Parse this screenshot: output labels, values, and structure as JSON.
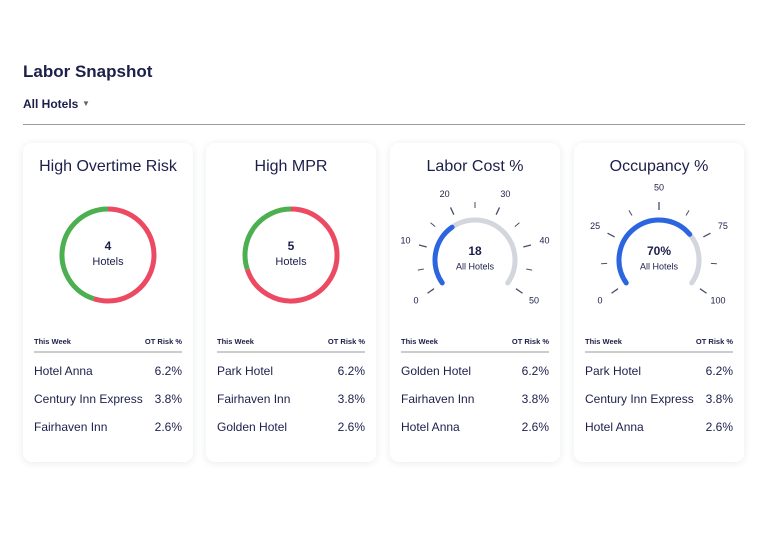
{
  "header": {
    "title": "Labor Snapshot",
    "filter": "All Hotels"
  },
  "cards": [
    {
      "title": "High Overtime Risk",
      "gauge": {
        "type": "donut",
        "value": 4,
        "label": "Hotels",
        "segments": [
          {
            "color": "#ec4a62",
            "value": 55
          },
          {
            "color": "#4caf50",
            "value": 45
          }
        ]
      },
      "table": {
        "columns": [
          "This Week",
          "OT Risk %"
        ],
        "rows": [
          [
            "Hotel Anna",
            "6.2%"
          ],
          [
            "Century Inn Express",
            "3.8%"
          ],
          [
            "Fairhaven Inn",
            "2.6%"
          ]
        ]
      }
    },
    {
      "title": "High MPR",
      "gauge": {
        "type": "donut",
        "value": 5,
        "label": "Hotels",
        "segments": [
          {
            "color": "#ec4a62",
            "value": 70
          },
          {
            "color": "#4caf50",
            "value": 30
          }
        ]
      },
      "table": {
        "columns": [
          "This Week",
          "OT Risk %"
        ],
        "rows": [
          [
            "Park Hotel",
            "6.2%"
          ],
          [
            "Fairhaven Inn",
            "3.8%"
          ],
          [
            "Golden Hotel",
            "2.6%"
          ]
        ]
      }
    },
    {
      "title": "Labor Cost %",
      "gauge": {
        "type": "dial",
        "value": 18,
        "label": "All Hotels",
        "lim": [
          0,
          50
        ],
        "ticks": [
          0,
          10,
          20,
          30,
          40,
          50
        ],
        "color": "#2b66e0",
        "track": "#d3d6dc"
      },
      "table": {
        "columns": [
          "This Week",
          "OT Risk %"
        ],
        "rows": [
          [
            "Golden Hotel",
            "6.2%"
          ],
          [
            "Fairhaven Inn",
            "3.8%"
          ],
          [
            "Hotel Anna",
            "2.6%"
          ]
        ]
      }
    },
    {
      "title": "Occupancy %",
      "gauge": {
        "type": "dial",
        "value": 70,
        "value_label": "70%",
        "label": "All Hotels",
        "lim": [
          0,
          100
        ],
        "ticks": [
          0,
          25,
          50,
          75,
          100
        ],
        "color": "#2b66e0",
        "track": "#d3d6dc"
      },
      "table": {
        "columns": [
          "This Week",
          "OT Risk %"
        ],
        "rows": [
          [
            "Park Hotel",
            "6.2%"
          ],
          [
            "Century Inn Express",
            "3.8%"
          ],
          [
            "Hotel Anna",
            "2.6%"
          ]
        ]
      }
    }
  ]
}
